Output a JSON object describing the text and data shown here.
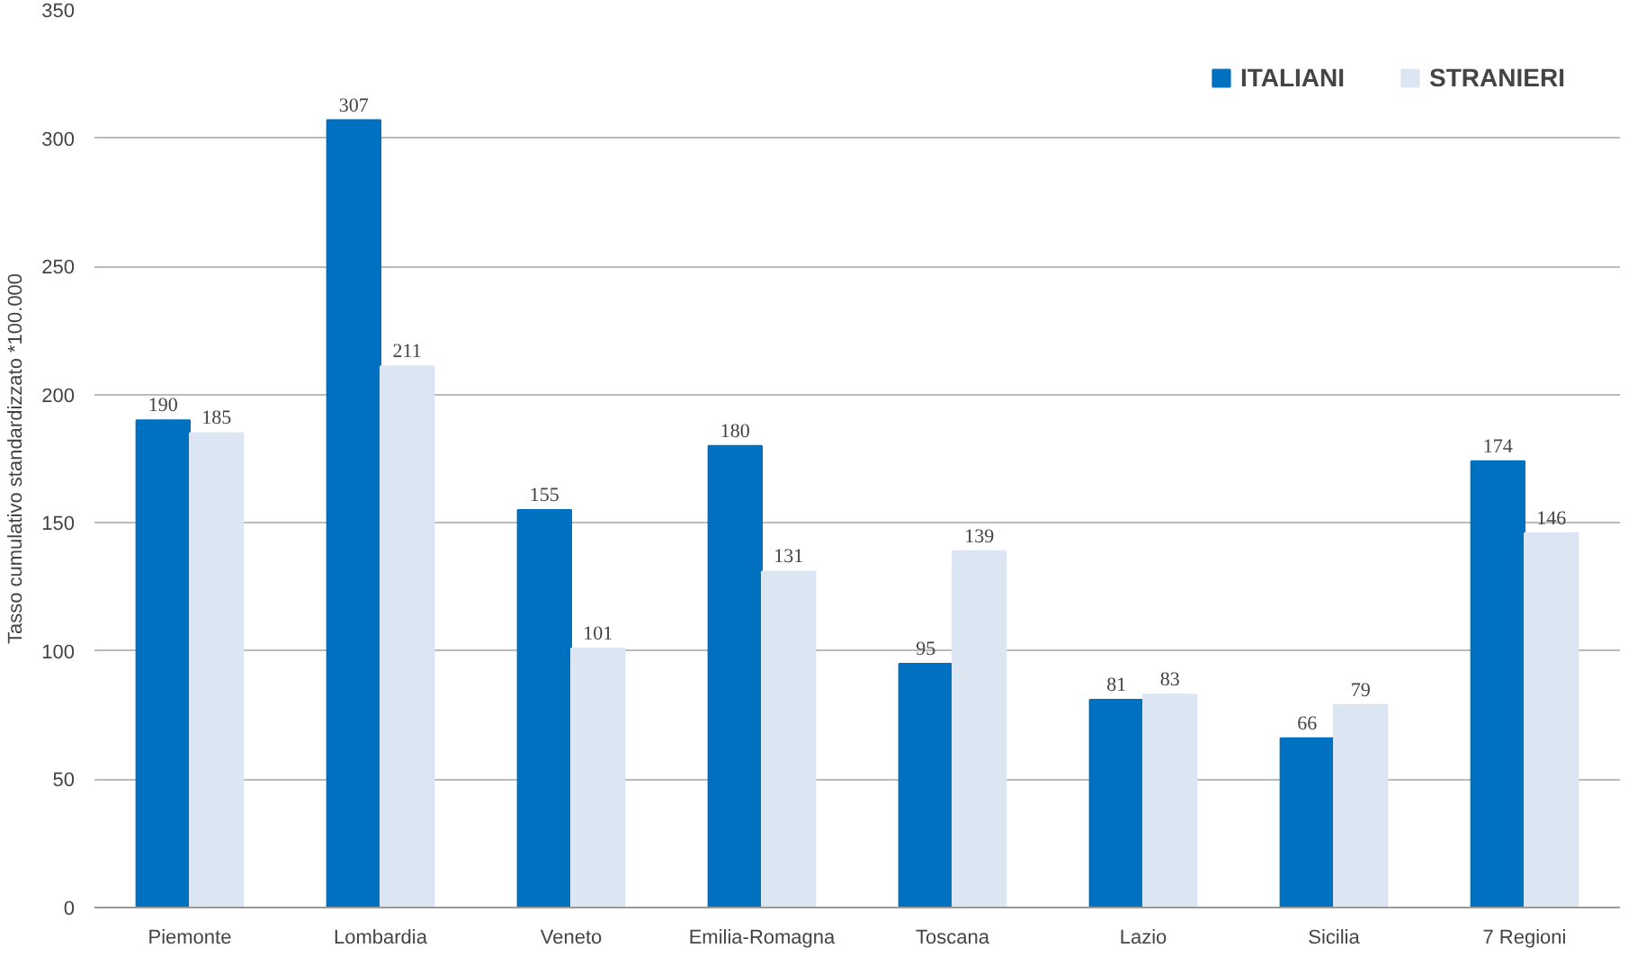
{
  "chart_data": {
    "type": "bar",
    "ylabel": "Tasso cumulativo standardizzato *100.000",
    "categories": [
      "Piemonte",
      "Lombardia",
      "Veneto",
      "Emilia-Romagna",
      "Toscana",
      "Lazio",
      "Sicilia",
      "7 Regioni"
    ],
    "series": [
      {
        "name": "ITALIANI",
        "color": "#0070c0",
        "values": [
          190,
          307,
          155,
          180,
          95,
          81,
          66,
          174
        ]
      },
      {
        "name": "STRANIERI",
        "color": "#dce6f2",
        "values": [
          185,
          211,
          101,
          131,
          139,
          83,
          79,
          146
        ]
      }
    ],
    "ylim": [
      0,
      350
    ],
    "yticks": [
      0,
      50,
      100,
      150,
      200,
      250,
      300,
      350
    ],
    "grid": "y",
    "legend": "top right",
    "data_labels": true
  }
}
